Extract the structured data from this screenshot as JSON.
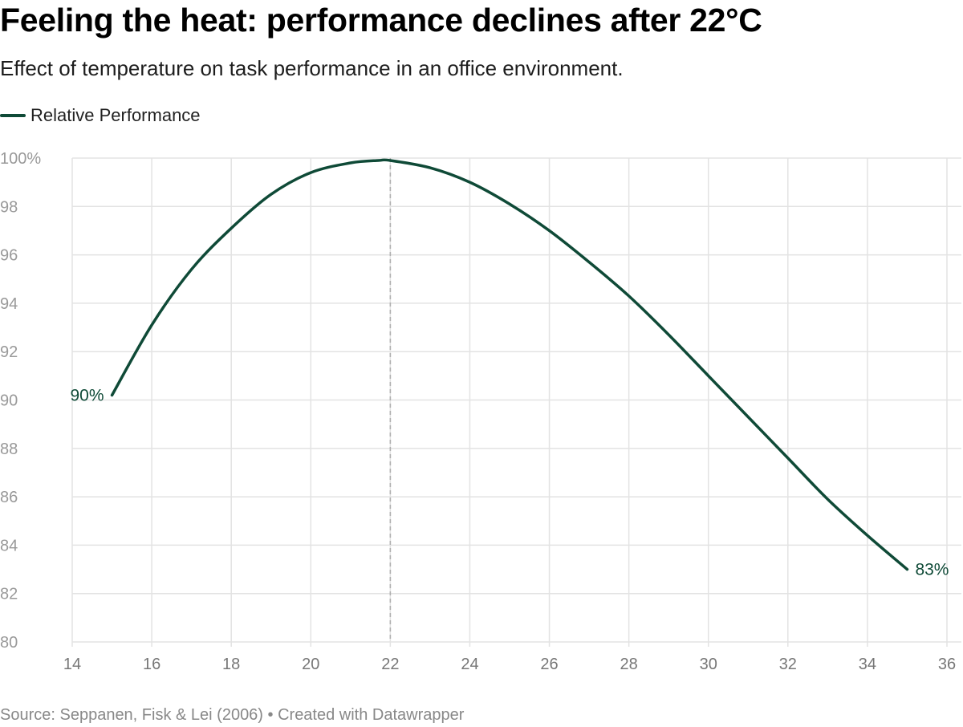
{
  "title": "Feeling the heat: performance declines after 22°C",
  "subtitle": "Effect of temperature on task performance in an office environment.",
  "source": "Source: Seppanen, Fisk & Lei (2006) • Created with Datawrapper",
  "colors": {
    "line": "#0f4a37",
    "grid": "#e3e3e3",
    "tick_text": "#999999",
    "ref_line": "#b0b0b0",
    "source_text": "#888888"
  },
  "chart_data": {
    "type": "line",
    "title": "Feeling the heat: performance declines after 22°C",
    "xlabel": "",
    "ylabel": "",
    "xlim": [
      14,
      36
    ],
    "ylim": [
      80,
      100
    ],
    "grid": true,
    "legend_position": "top-left",
    "x_ticks": [
      14,
      16,
      18,
      20,
      22,
      24,
      26,
      28,
      30,
      32,
      34,
      36
    ],
    "x_tick_labels": [
      "14",
      "16",
      "18",
      "20",
      "22",
      "24",
      "26",
      "28",
      "30",
      "32",
      "34",
      "36"
    ],
    "y_ticks": [
      80,
      82,
      84,
      86,
      88,
      90,
      92,
      94,
      96,
      98,
      100
    ],
    "y_tick_labels": [
      "80",
      "82",
      "84",
      "86",
      "88",
      "90",
      "92",
      "94",
      "96",
      "98",
      "100%"
    ],
    "reference_line_x": 22,
    "series": [
      {
        "name": "Relative Performance",
        "x": [
          15,
          16,
          17,
          18,
          19,
          20,
          21,
          21.7,
          22,
          23,
          24,
          25,
          26,
          27,
          28,
          29,
          30,
          31,
          32,
          33,
          34,
          35
        ],
        "y": [
          90.2,
          93.1,
          95.4,
          97.1,
          98.5,
          99.4,
          99.8,
          99.9,
          99.9,
          99.6,
          99.0,
          98.1,
          97.0,
          95.7,
          94.3,
          92.7,
          91.0,
          89.3,
          87.6,
          85.9,
          84.4,
          83.0
        ]
      }
    ],
    "annotations": [
      {
        "label": "90%",
        "x": 15,
        "y": 90.2,
        "anchor": "end"
      },
      {
        "label": "83%",
        "x": 35,
        "y": 83.0,
        "anchor": "start"
      }
    ]
  }
}
